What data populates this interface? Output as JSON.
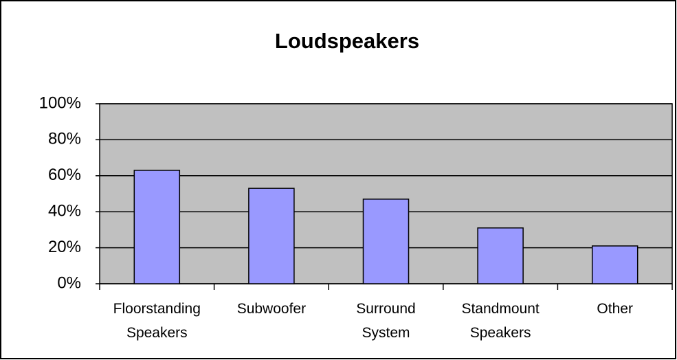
{
  "chart_data": {
    "type": "bar",
    "title": "Loudspeakers",
    "categories": [
      "Floorstanding Speakers",
      "Subwoofer",
      "Surround System",
      "Standmount Speakers",
      "Other"
    ],
    "values": [
      63,
      53,
      47,
      31,
      21
    ],
    "color": "#9999ff",
    "ylim": [
      0,
      100
    ],
    "yticks": [
      {
        "value": 0,
        "label": "0%"
      },
      {
        "value": 20,
        "label": "20%"
      },
      {
        "value": 40,
        "label": "40%"
      },
      {
        "value": 60,
        "label": "60%"
      },
      {
        "value": 80,
        "label": "80%"
      },
      {
        "value": 100,
        "label": "100%"
      }
    ],
    "grid": true
  }
}
